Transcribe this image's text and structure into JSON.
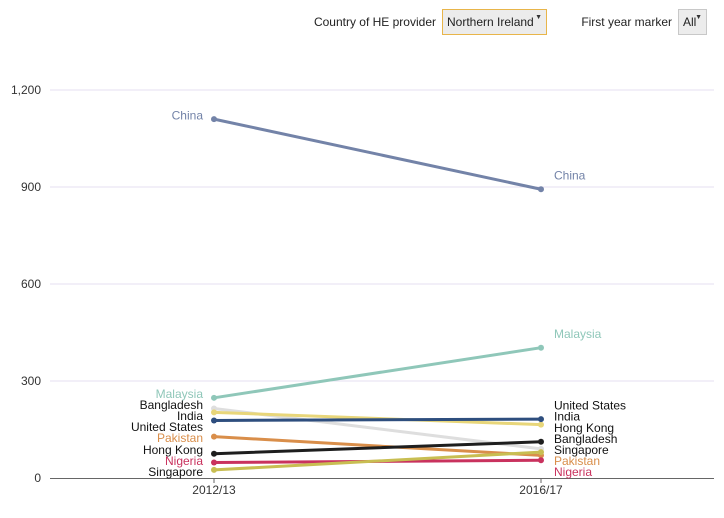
{
  "controls": {
    "country_label": "Country of HE provider",
    "country_value": "Northern Ireland",
    "year_label": "First year marker",
    "year_value": "All"
  },
  "chart_data": {
    "type": "line",
    "categories": [
      "2012/13",
      "2016/17"
    ],
    "ylim": [
      0,
      1200
    ],
    "yticks": [
      0,
      300,
      600,
      900,
      1200
    ],
    "ytick_labels": [
      "0",
      "300",
      "600",
      "900",
      "1,200"
    ],
    "grid": true,
    "xlabel": "",
    "ylabel": "",
    "series": [
      {
        "name": "China",
        "values": [
          1110,
          893
        ],
        "color": "#7383a8",
        "labels": [
          true,
          true
        ]
      },
      {
        "name": "Malaysia",
        "values": [
          248,
          403
        ],
        "color": "#8fc7b9",
        "labels": [
          true,
          true
        ]
      },
      {
        "name": "Bangladesh",
        "values": [
          215,
          90
        ],
        "color": "#dedede",
        "labels": [
          true,
          true
        ]
      },
      {
        "name": "India",
        "values": [
          203,
          165
        ],
        "color": "#e8d67a",
        "labels": [
          true,
          true
        ]
      },
      {
        "name": "United States",
        "values": [
          178,
          182
        ],
        "color": "#2e4e7e",
        "labels": [
          true,
          true
        ]
      },
      {
        "name": "Pakistan",
        "values": [
          128,
          70
        ],
        "color": "#d98e4a",
        "labels": [
          true,
          true
        ]
      },
      {
        "name": "Hong Kong",
        "values": [
          75,
          112
        ],
        "color": "#1e1e1e",
        "labels": [
          true,
          true
        ]
      },
      {
        "name": "Nigeria",
        "values": [
          48,
          55
        ],
        "color": "#c9325e",
        "labels": [
          true,
          true
        ]
      },
      {
        "name": "Singapore",
        "values": [
          25,
          80
        ],
        "color": "#c8be52",
        "labels": [
          true,
          true
        ]
      }
    ]
  }
}
